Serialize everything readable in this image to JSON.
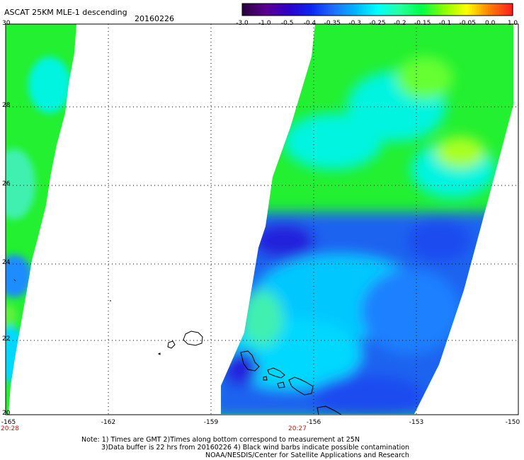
{
  "header": {
    "title": "ASCAT 25KM MLE-1 descending",
    "date": "20160226"
  },
  "colorbar": {
    "labels": [
      "-3.0",
      "-1.0",
      "-0.5",
      "-0.4",
      "-0.35",
      "-0.3",
      "-0.25",
      "-0.2",
      "-0.15",
      "-0.1",
      "-0.05",
      "0.0",
      "1.0"
    ],
    "colors": [
      "#2a003f",
      "#5a0090",
      "#3000c8",
      "#0b24f0",
      "#1e6cff",
      "#00b4ff",
      "#00ffff",
      "#24ffa0",
      "#00ff44",
      "#8cff00",
      "#ffff00",
      "#ff8000",
      "#ff2020"
    ]
  },
  "axes": {
    "lat_labels": [
      "30",
      "28",
      "26",
      "24",
      "22",
      "20"
    ],
    "lon_labels": [
      "-165",
      "-162",
      "-159",
      "-156",
      "-153",
      "-150"
    ],
    "swath_times": [
      "20:28",
      "20:27"
    ]
  },
  "notes": {
    "line1": "Note: 1) Times are GMT 2)Times along bottom correspond to measurement at 25N",
    "line2": "3)Data buffer is 22 hrs from 20160226 4) Black wind barbs indicate possible contamination",
    "line3": "NOAA/NESDIS/Center for Satellite Applications and Research"
  },
  "palette": {
    "green": "#22f030",
    "cyan": "#00f4f4",
    "blue": "#1f63f0",
    "darkblue": "#2222dd",
    "yellowgreen": "#a8ff20",
    "coast": "#000000"
  }
}
